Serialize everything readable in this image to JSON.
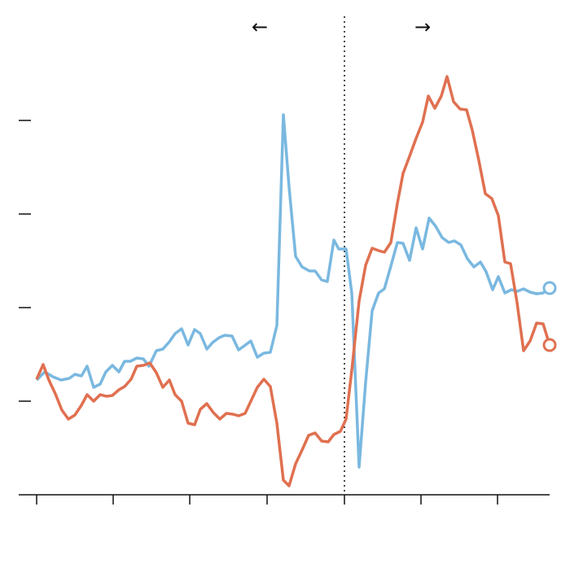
{
  "chart_data": {
    "type": "line",
    "annotations": [
      {
        "text": "←",
        "x": 274
      },
      {
        "text": "→",
        "x": 474
      }
    ],
    "vline_x": 378,
    "xlim": [
      -22,
      630
    ],
    "xticks": [
      0,
      94,
      188,
      283,
      378,
      472,
      566
    ],
    "ylim": [
      0,
      598
    ],
    "yticks": [
      115,
      230,
      345,
      460
    ],
    "series": [
      {
        "color": "#7ab8e0",
        "x": [
          0,
          10,
          20,
          30,
          40,
          47,
          55,
          62,
          70,
          78,
          85,
          93,
          101,
          108,
          115,
          123,
          131,
          138,
          147,
          155,
          163,
          170,
          178,
          186,
          194,
          201,
          209,
          216,
          224,
          231,
          240,
          248,
          255,
          263,
          271,
          279,
          287,
          295,
          303,
          310,
          318,
          326,
          335,
          342,
          350,
          357,
          365,
          371,
          380,
          387,
          396,
          404,
          412,
          420,
          427,
          435,
          443,
          450,
          458,
          466,
          474,
          482,
          490,
          498,
          506,
          513,
          521,
          529,
          537,
          545,
          552,
          560,
          567,
          575,
          583,
          590,
          598,
          606,
          614,
          622,
          630
        ],
        "values": [
          141,
          151,
          145,
          141,
          143,
          148,
          146,
          158,
          132,
          136,
          151,
          159,
          151,
          164,
          164,
          168,
          167,
          158,
          177,
          179,
          188,
          198,
          204,
          184,
          203,
          198,
          179,
          187,
          193,
          196,
          195,
          178,
          183,
          189,
          169,
          174,
          175,
          208,
          467,
          378,
          293,
          280,
          275,
          275,
          264,
          262,
          313,
          302,
          302,
          248,
          34,
          138,
          226,
          248,
          253,
          281,
          310,
          309,
          288,
          328,
          302,
          340,
          330,
          316,
          310,
          312,
          307,
          290,
          280,
          286,
          274,
          252,
          268,
          248,
          252,
          250,
          253,
          249,
          247,
          248,
          254
        ]
      },
      {
        "color": "#e07050",
        "x": [
          0,
          8,
          15,
          23,
          31,
          39,
          47,
          55,
          62,
          70,
          78,
          86,
          93,
          101,
          108,
          116,
          123,
          131,
          139,
          147,
          155,
          163,
          170,
          178,
          186,
          194,
          201,
          209,
          217,
          225,
          233,
          241,
          248,
          256,
          264,
          271,
          279,
          287,
          295,
          303,
          310,
          318,
          326,
          334,
          342,
          350,
          358,
          365,
          373,
          380,
          387,
          396,
          404,
          412,
          420,
          427,
          435,
          443,
          450,
          458,
          466,
          474,
          481,
          489,
          497,
          504,
          512,
          520,
          528,
          535,
          543,
          551,
          559,
          567,
          575,
          582,
          590,
          598,
          606,
          614,
          622,
          630
        ],
        "values": [
          142,
          160,
          141,
          124,
          104,
          93,
          98,
          110,
          123,
          115,
          123,
          121,
          122,
          129,
          133,
          142,
          158,
          159,
          162,
          150,
          132,
          141,
          123,
          115,
          88,
          86,
          105,
          112,
          101,
          93,
          100,
          99,
          97,
          100,
          117,
          132,
          142,
          133,
          88,
          18,
          11,
          38,
          55,
          73,
          76,
          66,
          65,
          74,
          78,
          93,
          153,
          238,
          282,
          303,
          300,
          298,
          310,
          358,
          395,
          416,
          438,
          458,
          490,
          475,
          490,
          514,
          483,
          474,
          473,
          448,
          411,
          370,
          364,
          343,
          286,
          284,
          236,
          177,
          189,
          211,
          210,
          184
        ]
      }
    ]
  }
}
